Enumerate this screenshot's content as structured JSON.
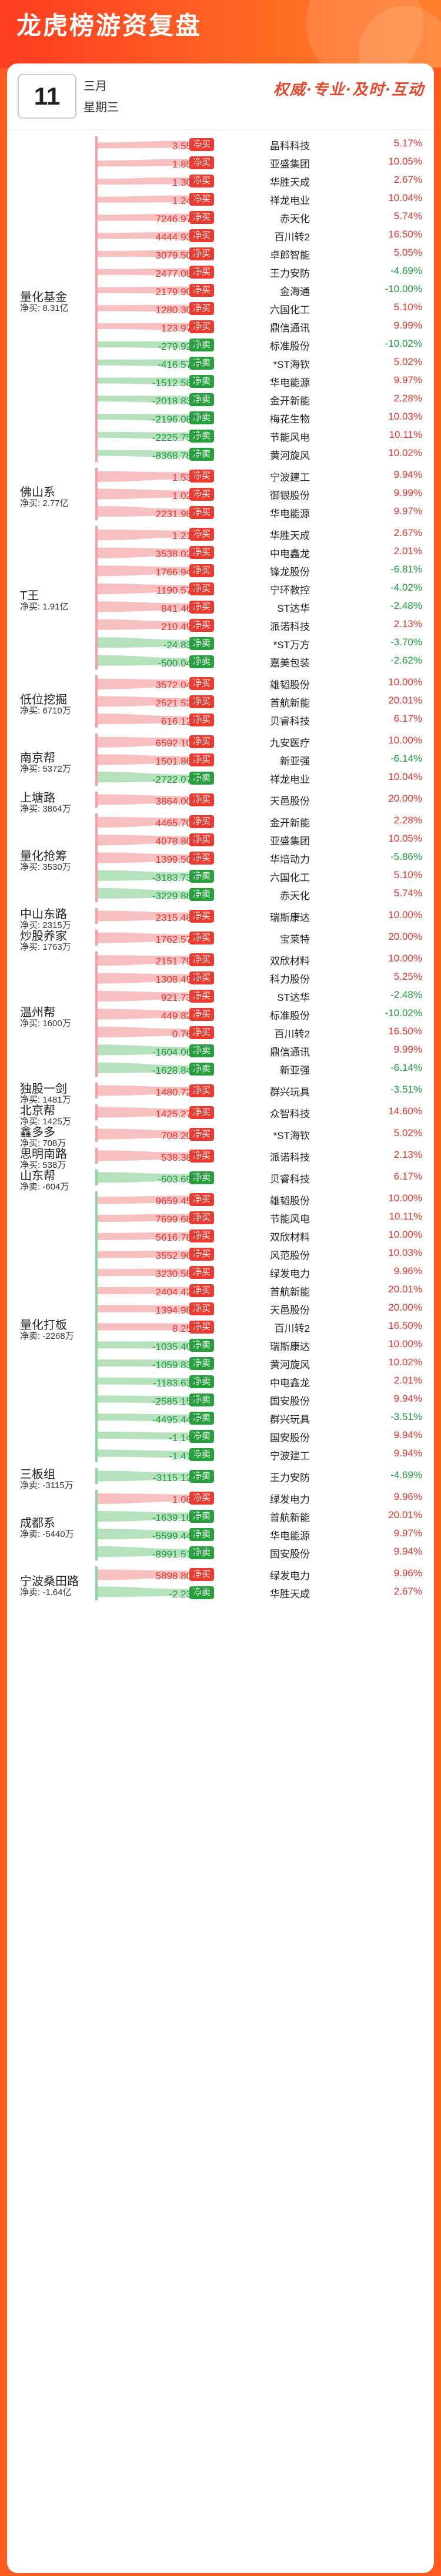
{
  "header": {
    "title": "龙虎榜游资复盘",
    "day": "11",
    "month": "三月",
    "week": "星期三",
    "slogan": "权威·专业·及时·互动"
  },
  "groups": [
    {
      "name": "量化基金",
      "net": "净买: 8.31亿",
      "sign": "pos",
      "rows": [
        [
          "净买",
          "3.55亿",
          "晶科科技",
          "5.17%"
        ],
        [
          "净买",
          "1.85亿",
          "亚盛集团",
          "10.05%"
        ],
        [
          "净买",
          "1.30亿",
          "华胜天成",
          "2.67%"
        ],
        [
          "净买",
          "1.24亿",
          "祥龙电业",
          "10.04%"
        ],
        [
          "净买",
          "7246.97万",
          "赤天化",
          "5.74%"
        ],
        [
          "净买",
          "4444.93万",
          "百川转2",
          "16.50%"
        ],
        [
          "净买",
          "3079.50万",
          "卓郎智能",
          "5.05%"
        ],
        [
          "净买",
          "2477.08万",
          "王力安防",
          "-4.69%"
        ],
        [
          "净买",
          "2179.90万",
          "金海通",
          "-10.00%"
        ],
        [
          "净买",
          "1280.30万",
          "六国化工",
          "5.10%"
        ],
        [
          "净买",
          "123.97万",
          "鼎信通讯",
          "9.99%"
        ],
        [
          "净卖",
          "-279.92万",
          "标准股份",
          "-10.02%"
        ],
        [
          "净卖",
          "-416.57万",
          "*ST海钦",
          "5.02%"
        ],
        [
          "净卖",
          "-1512.58万",
          "华电能源",
          "9.97%"
        ],
        [
          "净卖",
          "-2018.83万",
          "金开新能",
          "2.28%"
        ],
        [
          "净卖",
          "-2196.08万",
          "梅花生物",
          "10.03%"
        ],
        [
          "净卖",
          "-2225.75万",
          "节能风电",
          "10.11%"
        ],
        [
          "净卖",
          "-8368.78万",
          "黄河旋风",
          "10.02%"
        ]
      ]
    },
    {
      "name": "佛山系",
      "net": "净买: 2.77亿",
      "sign": "pos",
      "rows": [
        [
          "净买",
          "1.53亿",
          "宁波建工",
          "9.94%"
        ],
        [
          "净买",
          "1.02亿",
          "御银股份",
          "9.99%"
        ],
        [
          "净买",
          "2231.98万",
          "华电能源",
          "9.97%"
        ]
      ]
    },
    {
      "name": "T王",
      "net": "净买: 1.91亿",
      "sign": "pos",
      "rows": [
        [
          "净买",
          "1.21亿",
          "华胜天成",
          "2.67%"
        ],
        [
          "净买",
          "3538.02万",
          "中电鑫龙",
          "2.01%"
        ],
        [
          "净买",
          "1766.94万",
          "锋龙股份",
          "-6.81%"
        ],
        [
          "净买",
          "1190.57万",
          "宁环教控",
          "-4.02%"
        ],
        [
          "净买",
          "841.46万",
          "ST达华",
          "-2.48%"
        ],
        [
          "净买",
          "210.49万",
          "派诺科技",
          "2.13%"
        ],
        [
          "净卖",
          "-24.83万",
          "*ST万方",
          "-3.70%"
        ],
        [
          "净卖",
          "-500.04万",
          "嘉美包装",
          "-2.62%"
        ]
      ]
    },
    {
      "name": "低位挖掘",
      "net": "净买: 6710万",
      "sign": "pos",
      "rows": [
        [
          "净买",
          "3572.04万",
          "雄韬股份",
          "10.00%"
        ],
        [
          "净买",
          "2521.52万",
          "首航新能",
          "20.01%"
        ],
        [
          "净买",
          "616.12万",
          "贝睿科技",
          "6.17%"
        ]
      ]
    },
    {
      "name": "南京帮",
      "net": "净买: 5372万",
      "sign": "pos",
      "rows": [
        [
          "净买",
          "6592.10万",
          "九安医疗",
          "10.00%"
        ],
        [
          "净买",
          "1501.86万",
          "新亚强",
          "-6.14%"
        ],
        [
          "净卖",
          "-2722.07万",
          "祥龙电业",
          "10.04%"
        ]
      ]
    },
    {
      "name": "上塘路",
      "net": "净买: 3864万",
      "sign": "pos",
      "rows": [
        [
          "净买",
          "3864.00万",
          "天邑股份",
          "20.00%"
        ]
      ]
    },
    {
      "name": "量化抢筹",
      "net": "净买: 3530万",
      "sign": "pos",
      "rows": [
        [
          "净买",
          "4465.70万",
          "金开新能",
          "2.28%"
        ],
        [
          "净买",
          "4078.80万",
          "亚盛集团",
          "10.05%"
        ],
        [
          "净买",
          "1399.50万",
          "华培动力",
          "-5.86%"
        ],
        [
          "净卖",
          "-3183.73万",
          "六国化工",
          "5.10%"
        ],
        [
          "净卖",
          "-3229.88万",
          "赤天化",
          "5.74%"
        ]
      ]
    },
    {
      "name": "中山东路",
      "net": "净买: 2315万",
      "sign": "pos",
      "rows": [
        [
          "净买",
          "2315.48万",
          "瑞斯康达",
          "10.00%"
        ]
      ]
    },
    {
      "name": "炒股养家",
      "net": "净买: 1763万",
      "sign": "pos",
      "rows": [
        [
          "净买",
          "1762.57万",
          "宝莱特",
          "20.00%"
        ]
      ]
    },
    {
      "name": "温州帮",
      "net": "净买: 1600万",
      "sign": "pos",
      "rows": [
        [
          "净买",
          "2151.79万",
          "双欣材料",
          "10.00%"
        ],
        [
          "净买",
          "1308.49万",
          "科力股份",
          "5.25%"
        ],
        [
          "净买",
          "921.73万",
          "ST达华",
          "-2.48%"
        ],
        [
          "净买",
          "449.82万",
          "标准股份",
          "-10.02%"
        ],
        [
          "净买",
          "0.76万",
          "百川转2",
          "16.50%"
        ],
        [
          "净卖",
          "-1604.06万",
          "鼎信通讯",
          "9.99%"
        ],
        [
          "净卖",
          "-1628.84万",
          "新亚强",
          "-6.14%"
        ]
      ]
    },
    {
      "name": "独股一剑",
      "net": "净买: 1481万",
      "sign": "pos",
      "rows": [
        [
          "净买",
          "1480.72万",
          "群兴玩具",
          "-3.51%"
        ]
      ]
    },
    {
      "name": "北京帮",
      "net": "净买: 1425万",
      "sign": "pos",
      "rows": [
        [
          "净买",
          "1425.27万",
          "众智科技",
          "14.60%"
        ]
      ]
    },
    {
      "name": "鑫多多",
      "net": "净买: 708万",
      "sign": "pos",
      "rows": [
        [
          "净买",
          "708.20万",
          "*ST海钦",
          "5.02%"
        ]
      ]
    },
    {
      "name": "思明南路",
      "net": "净买: 538万",
      "sign": "pos",
      "rows": [
        [
          "净买",
          "538.38万",
          "派诺科技",
          "2.13%"
        ]
      ]
    },
    {
      "name": "山东帮",
      "net": "净卖: -604万",
      "sign": "neg",
      "rows": [
        [
          "净卖",
          "-603.69万",
          "贝睿科技",
          "6.17%"
        ]
      ]
    },
    {
      "name": "量化打板",
      "net": "净卖: -2268万",
      "sign": "neg",
      "rows": [
        [
          "净买",
          "9659.45万",
          "雄韬股份",
          "10.00%"
        ],
        [
          "净买",
          "7699.68万",
          "节能风电",
          "10.11%"
        ],
        [
          "净买",
          "5616.78万",
          "双欣材料",
          "10.00%"
        ],
        [
          "净买",
          "3552.96万",
          "风范股份",
          "10.03%"
        ],
        [
          "净买",
          "3230.58万",
          "绿发电力",
          "9.96%"
        ],
        [
          "净买",
          "2404.42万",
          "首航新能",
          "20.01%"
        ],
        [
          "净买",
          "1394.98万",
          "天邑股份",
          "20.00%"
        ],
        [
          "净买",
          "8.25万",
          "百川转2",
          "16.50%"
        ],
        [
          "净卖",
          "-1035.40万",
          "瑞斯康达",
          "10.00%"
        ],
        [
          "净卖",
          "-1059.83万",
          "黄河旋风",
          "10.02%"
        ],
        [
          "净卖",
          "-1183.63万",
          "中电鑫龙",
          "2.01%"
        ],
        [
          "净卖",
          "-2585.15万",
          "国安股份",
          "9.94%"
        ],
        [
          "净卖",
          "-4495.44万",
          "群兴玩具",
          "-3.51%"
        ],
        [
          "净卖",
          "-1.14亿",
          "国安股份",
          "9.94%"
        ],
        [
          "净卖",
          "-1.41亿",
          "宁波建工",
          "9.94%"
        ]
      ]
    },
    {
      "name": "三板组",
      "net": "净卖: -3115万",
      "sign": "neg",
      "rows": [
        [
          "净卖",
          "-3115.12万",
          "王力安防",
          "-4.69%"
        ]
      ]
    },
    {
      "name": "成都系",
      "net": "净卖: -5440万",
      "sign": "neg",
      "rows": [
        [
          "净买",
          "1.08亿",
          "绿发电力",
          "9.96%"
        ],
        [
          "净卖",
          "-1639.18万",
          "首航新能",
          "20.01%"
        ],
        [
          "净卖",
          "-5599.44万",
          "华电能源",
          "9.97%"
        ],
        [
          "净卖",
          "-8991.51万",
          "国安股份",
          "9.94%"
        ]
      ]
    },
    {
      "name": "宁波桑田路",
      "net": "净卖: -1.64亿",
      "sign": "neg",
      "rows": [
        [
          "净买",
          "5898.80万",
          "绿发电力",
          "9.96%"
        ],
        [
          "净卖",
          "-2.23亿",
          "华胜天成",
          "2.67%"
        ]
      ]
    }
  ]
}
